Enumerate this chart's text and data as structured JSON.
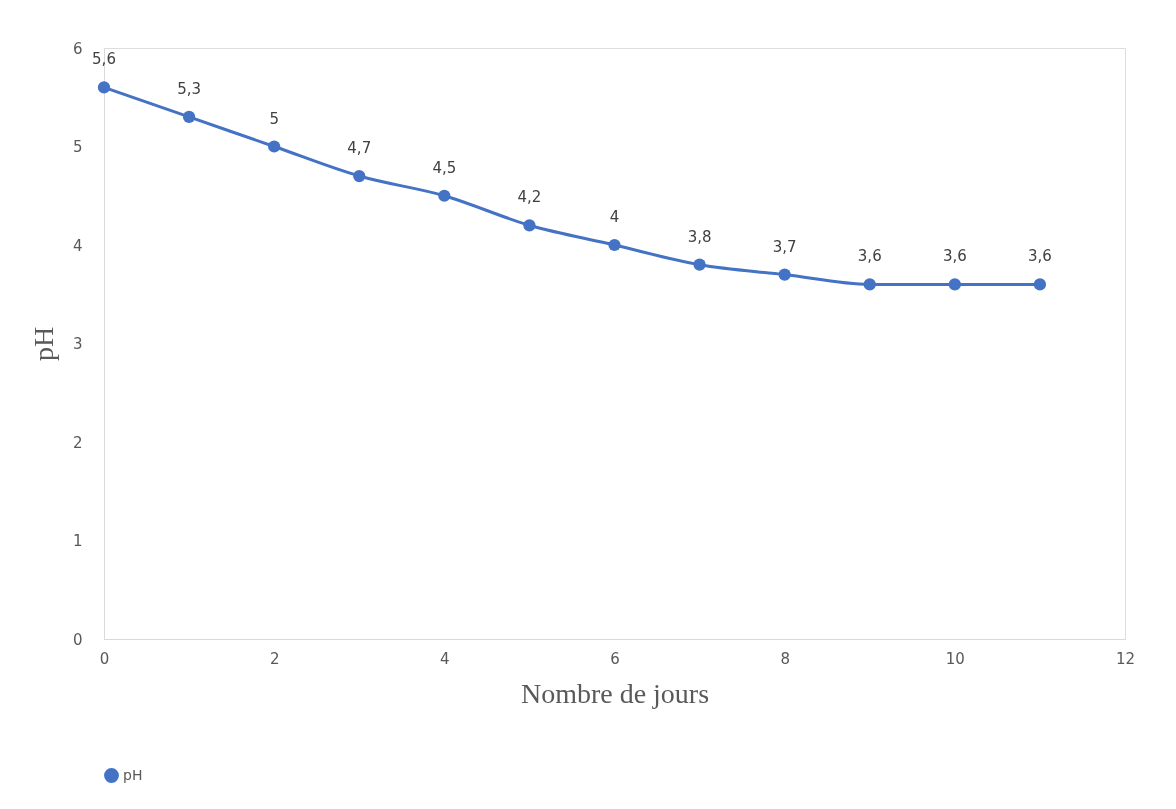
{
  "chart_data": {
    "type": "line",
    "xlabel": "Nombre de jours",
    "ylabel": "pH",
    "x": [
      0,
      1,
      2,
      3,
      4,
      5,
      6,
      7,
      8,
      9,
      10,
      11
    ],
    "series": [
      {
        "name": "pH",
        "color": "#4472c4",
        "values": [
          5.6,
          5.3,
          5,
          4.7,
          4.5,
          4.2,
          4,
          3.8,
          3.7,
          3.6,
          3.6,
          3.6
        ],
        "value_labels": [
          "5,6",
          "5,3",
          "5",
          "4,7",
          "4,5",
          "4,2",
          "4",
          "3,8",
          "3,7",
          "3,6",
          "3,6",
          "3,6"
        ]
      }
    ],
    "xlim": [
      0,
      12
    ],
    "xticks": [
      0,
      2,
      4,
      6,
      8,
      10,
      12
    ],
    "ylim": [
      0,
      6
    ],
    "yticks": [
      0,
      1,
      2,
      3,
      4,
      5,
      6
    ],
    "grid": false,
    "legend": "bottom",
    "marker": "circle",
    "line_style": "solid"
  }
}
